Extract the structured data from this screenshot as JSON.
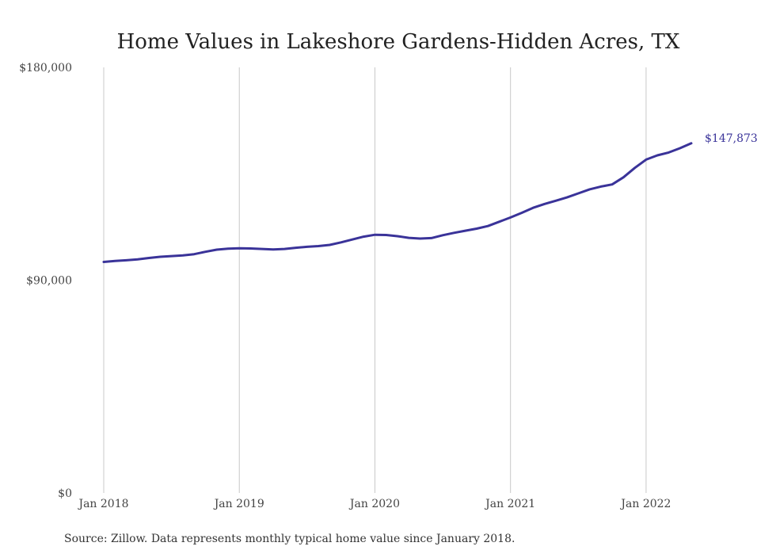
{
  "chart_data": {
    "type": "line",
    "title": "Home Values in Lakeshore Gardens-Hidden Acres, TX",
    "xlabel": "",
    "ylabel": "",
    "x_ticks": [
      {
        "label": "Jan 2018",
        "date": "2018-01"
      },
      {
        "label": "Jan 2019",
        "date": "2019-01"
      },
      {
        "label": "Jan 2020",
        "date": "2020-01"
      },
      {
        "label": "Jan 2021",
        "date": "2021-01"
      },
      {
        "label": "Jan 2022",
        "date": "2022-01"
      }
    ],
    "y_ticks": [
      {
        "label": "$0",
        "value": 0
      },
      {
        "label": "$90,000",
        "value": 90000
      },
      {
        "label": "$180,000",
        "value": 180000
      }
    ],
    "ylim": [
      0,
      180000
    ],
    "xlim": [
      "2018-01",
      "2022-05"
    ],
    "grid": {
      "vertical": true,
      "horizontal": false
    },
    "line_color": "#3a3399",
    "end_label": "$147,873",
    "series": [
      {
        "x": [
          "2018-01",
          "2018-02",
          "2018-03",
          "2018-04",
          "2018-05",
          "2018-06",
          "2018-07",
          "2018-08",
          "2018-09",
          "2018-10",
          "2018-11",
          "2018-12",
          "2019-01",
          "2019-02",
          "2019-03",
          "2019-04",
          "2019-05",
          "2019-06",
          "2019-07",
          "2019-08",
          "2019-09",
          "2019-10",
          "2019-11",
          "2019-12",
          "2020-01",
          "2020-02",
          "2020-03",
          "2020-04",
          "2020-05",
          "2020-06",
          "2020-07",
          "2020-08",
          "2020-09",
          "2020-10",
          "2020-11",
          "2020-12",
          "2021-01",
          "2021-02",
          "2021-03",
          "2021-04",
          "2021-05",
          "2021-06",
          "2021-07",
          "2021-08",
          "2021-09",
          "2021-10",
          "2021-11",
          "2021-12",
          "2022-01",
          "2022-02",
          "2022-03",
          "2022-04",
          "2022-05"
        ],
        "values": [
          97700,
          98100,
          98400,
          98800,
          99400,
          99900,
          100200,
          100500,
          101000,
          102000,
          102900,
          103300,
          103500,
          103400,
          103200,
          103000,
          103200,
          103700,
          104100,
          104400,
          104900,
          106000,
          107200,
          108400,
          109200,
          109100,
          108600,
          107900,
          107600,
          107800,
          109000,
          110000,
          110900,
          111800,
          112900,
          114700,
          116500,
          118500,
          120600,
          122200,
          123600,
          125000,
          126700,
          128400,
          129600,
          130500,
          133500,
          137500,
          141000,
          142800,
          144000,
          145800,
          147873
        ]
      }
    ]
  },
  "source_note": "Source: Zillow. Data represents monthly typical home value since January 2018."
}
